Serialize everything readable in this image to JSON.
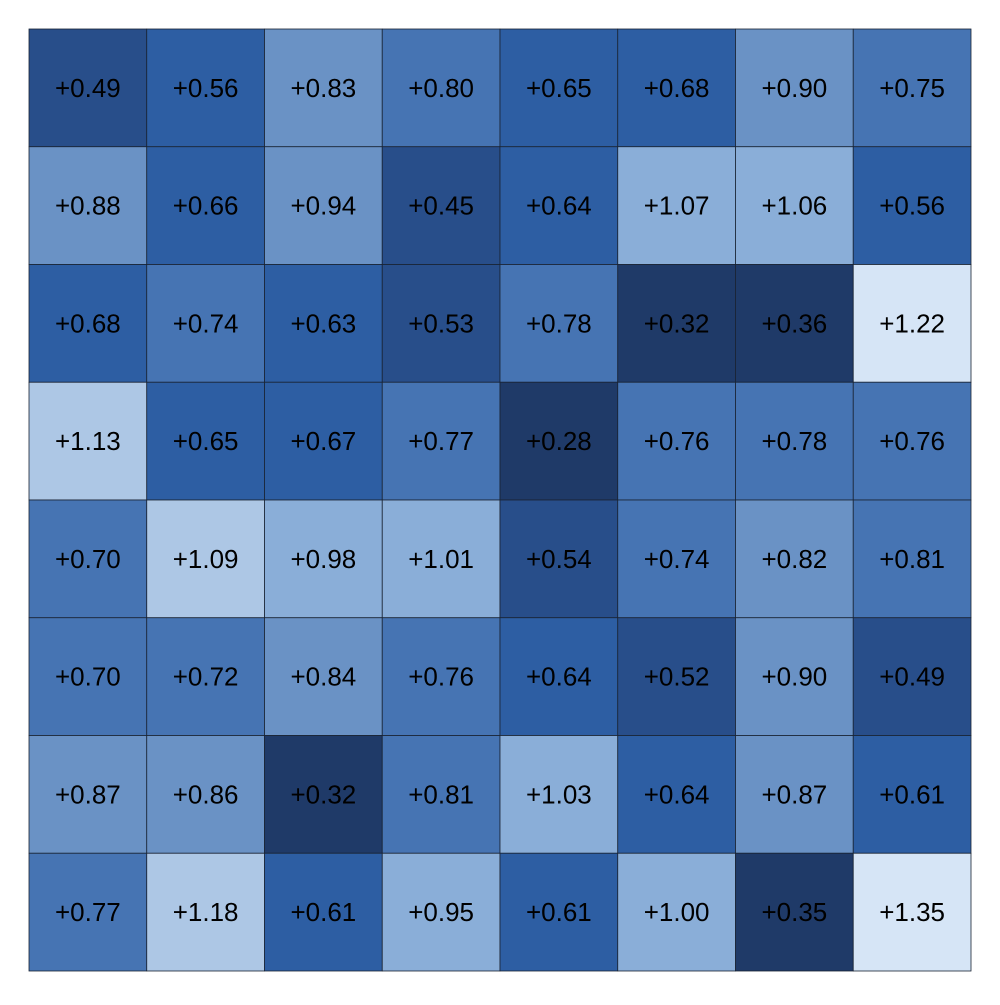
{
  "chart_data": {
    "type": "heatmap",
    "values": [
      [
        0.49,
        0.56,
        0.83,
        0.8,
        0.65,
        0.68,
        0.9,
        0.75
      ],
      [
        0.88,
        0.66,
        0.94,
        0.45,
        0.64,
        1.07,
        1.06,
        0.56
      ],
      [
        0.68,
        0.74,
        0.63,
        0.53,
        0.78,
        0.32,
        0.36,
        1.22
      ],
      [
        1.13,
        0.65,
        0.67,
        0.77,
        0.28,
        0.76,
        0.78,
        0.76
      ],
      [
        0.7,
        1.09,
        0.98,
        1.01,
        0.54,
        0.74,
        0.82,
        0.81
      ],
      [
        0.7,
        0.72,
        0.84,
        0.76,
        0.64,
        0.52,
        0.9,
        0.49
      ],
      [
        0.87,
        0.86,
        0.32,
        0.81,
        1.03,
        0.64,
        0.87,
        0.61
      ],
      [
        0.77,
        1.18,
        0.61,
        0.95,
        0.61,
        1.0,
        0.35,
        1.35
      ]
    ],
    "value_labels": [
      [
        "+0.49",
        "+0.56",
        "+0.83",
        "+0.80",
        "+0.65",
        "+0.68",
        "+0.90",
        "+0.75"
      ],
      [
        "+0.88",
        "+0.66",
        "+0.94",
        "+0.45",
        "+0.64",
        "+1.07",
        "+1.06",
        "+0.56"
      ],
      [
        "+0.68",
        "+0.74",
        "+0.63",
        "+0.53",
        "+0.78",
        "+0.32",
        "+0.36",
        "+1.22"
      ],
      [
        "+1.13",
        "+0.65",
        "+0.67",
        "+0.77",
        "+0.28",
        "+0.76",
        "+0.78",
        "+0.76"
      ],
      [
        "+0.70",
        "+1.09",
        "+0.98",
        "+1.01",
        "+0.54",
        "+0.74",
        "+0.82",
        "+0.81"
      ],
      [
        "+0.70",
        "+0.72",
        "+0.84",
        "+0.76",
        "+0.64",
        "+0.52",
        "+0.90",
        "+0.49"
      ],
      [
        "+0.87",
        "+0.86",
        "+0.32",
        "+0.81",
        "+1.03",
        "+0.64",
        "+0.87",
        "+0.61"
      ],
      [
        "+0.77",
        "+1.18",
        "+0.61",
        "+0.95",
        "+0.61",
        "+1.00",
        "+0.35",
        "+1.35"
      ]
    ],
    "colors": [
      "#1f3a68",
      "#284e8a",
      "#2d5ea3",
      "#4674b3",
      "#6a92c5",
      "#8aaed8",
      "#adc7e5",
      "#d6e5f6"
    ]
  }
}
